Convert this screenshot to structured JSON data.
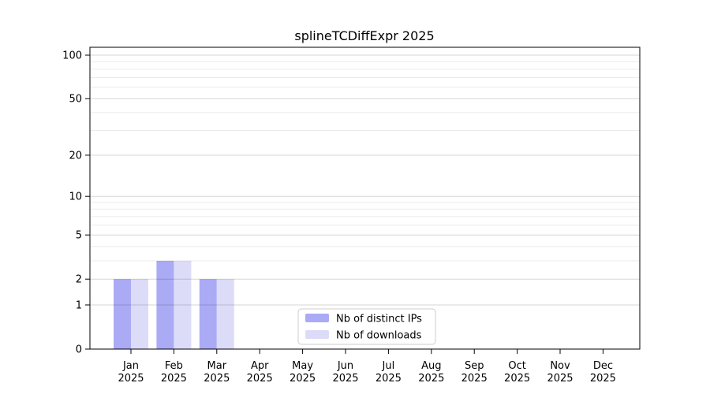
{
  "figure": {
    "background": "#ffffff"
  },
  "chart_data": {
    "type": "bar",
    "title": "splineTCDiffExpr 2025",
    "categories": [
      "Jan",
      "Feb",
      "Mar",
      "Apr",
      "May",
      "Jun",
      "Jul",
      "Aug",
      "Sep",
      "Oct",
      "Nov",
      "Dec"
    ],
    "category_sublabel": "2025",
    "series": [
      {
        "name": "Nb of distinct IPs",
        "color": "#aaaaf5",
        "values": [
          2,
          3,
          2,
          0,
          0,
          0,
          0,
          0,
          0,
          0,
          0,
          0
        ]
      },
      {
        "name": "Nb of downloads",
        "color": "#dcdcf9",
        "values": [
          2,
          3,
          2,
          0,
          0,
          0,
          0,
          0,
          0,
          0,
          0,
          0
        ]
      }
    ],
    "yscale": "log1p",
    "ylim": [
      0,
      100
    ],
    "yticks": [
      0,
      1,
      2,
      5,
      10,
      20,
      50,
      100
    ],
    "minor_gridlines": [
      3,
      4,
      6,
      7,
      8,
      9,
      30,
      40,
      60,
      70,
      80,
      90
    ],
    "grid": "on",
    "legend_position": "lower-center-inside",
    "xlabel": "",
    "ylabel": "",
    "axis_color": "#000000",
    "major_grid_color": "rgba(0,0,0,0.16)",
    "minor_grid_color": "rgba(0,0,0,0.08)"
  }
}
